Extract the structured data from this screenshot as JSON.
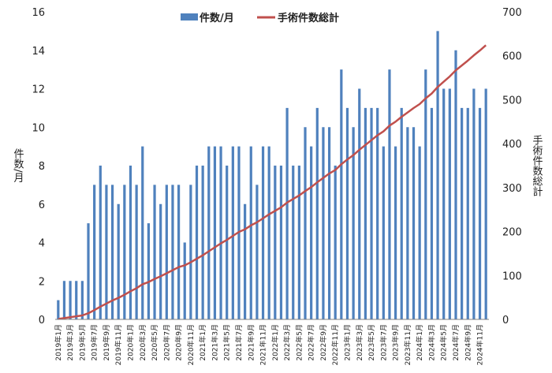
{
  "chart_data": {
    "type": "bar",
    "colors": {
      "bars": "#4f81bd",
      "line": "#c0504d",
      "axis": "#808080"
    },
    "legend": {
      "placement": "top-center",
      "bar_label": "件数/月",
      "line_label": "手術件数総計"
    },
    "y_left": {
      "label": "件数/月",
      "lim": [
        0,
        16
      ],
      "ticks": [
        "0",
        "2",
        "4",
        "6",
        "8",
        "10",
        "12",
        "14",
        "16"
      ]
    },
    "y_right": {
      "label": "手術件数総計",
      "lim": [
        0,
        700
      ],
      "ticks": [
        "0",
        "100",
        "200",
        "300",
        "400",
        "500",
        "600",
        "700"
      ]
    },
    "grid": false,
    "categories": [
      "2019年1月",
      "2019年2月",
      "2019年3月",
      "2019年4月",
      "2019年5月",
      "2019年6月",
      "2019年7月",
      "2019年8月",
      "2019年9月",
      "2019年10月",
      "2019年11月",
      "2019年12月",
      "2020年1月",
      "2020年2月",
      "2020年3月",
      "2020年4月",
      "2020年5月",
      "2020年6月",
      "2020年7月",
      "2020年8月",
      "2020年9月",
      "2020年10月",
      "2020年11月",
      "2020年12月",
      "2021年1月",
      "2021年2月",
      "2021年3月",
      "2021年4月",
      "2021年5月",
      "2021年6月",
      "2021年7月",
      "2021年8月",
      "2021年9月",
      "2021年10月",
      "2021年11月",
      "2021年12月",
      "2022年1月",
      "2022年2月",
      "2022年3月",
      "2022年4月",
      "2022年5月",
      "2022年6月",
      "2022年7月",
      "2022年8月",
      "2022年9月",
      "2022年10月",
      "2022年11月",
      "2022年12月",
      "2023年1月",
      "2023年2月",
      "2023年3月",
      "2023年4月",
      "2023年5月",
      "2023年6月",
      "2023年7月",
      "2023年8月",
      "2023年9月",
      "2023年10月",
      "2023年11月",
      "2023年12月",
      "2024年1月",
      "2024年2月",
      "2024年3月",
      "2024年4月",
      "2024年5月",
      "2024年6月",
      "2024年7月",
      "2024年8月",
      "2024年9月",
      "2024年10月",
      "2024年11月",
      "2024年12月"
    ],
    "series": [
      {
        "name": "件数/月",
        "type": "bar",
        "axis": "left",
        "values": [
          1,
          2,
          2,
          2,
          2,
          5,
          7,
          8,
          7,
          7,
          6,
          7,
          8,
          7,
          9,
          5,
          7,
          6,
          7,
          7,
          7,
          4,
          7,
          8,
          8,
          9,
          9,
          9,
          8,
          9,
          9,
          6,
          9,
          7,
          9,
          9,
          8,
          8,
          11,
          8,
          8,
          10,
          9,
          11,
          10,
          10,
          8,
          13,
          11,
          10,
          12,
          11,
          11,
          11,
          9,
          13,
          9,
          11,
          10,
          10,
          9,
          13,
          11,
          15,
          12,
          12,
          14,
          11,
          11,
          12,
          11,
          12
        ]
      },
      {
        "name": "手術件数総計",
        "type": "line",
        "axis": "right",
        "values": [
          1,
          3,
          5,
          7,
          9,
          14,
          21,
          29,
          36,
          43,
          49,
          56,
          64,
          71,
          80,
          85,
          92,
          98,
          105,
          112,
          119,
          123,
          130,
          138,
          146,
          155,
          164,
          173,
          181,
          190,
          199,
          205,
          214,
          221,
          230,
          239,
          247,
          255,
          266,
          274,
          282,
          292,
          301,
          312,
          322,
          332,
          340,
          353,
          364,
          374,
          386,
          397,
          408,
          419,
          428,
          441,
          450,
          461,
          471,
          481,
          490,
          503,
          514,
          529,
          541,
          553,
          567,
          578,
          589,
          601,
          612,
          624
        ]
      }
    ]
  }
}
